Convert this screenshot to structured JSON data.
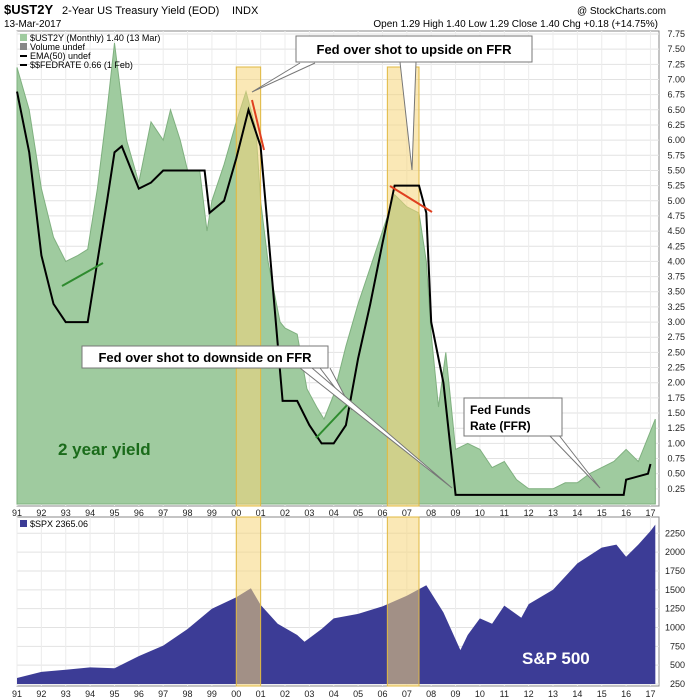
{
  "header": {
    "symbol": "$UST2Y",
    "description": "2-Year US Treasury Yield (EOD)",
    "exchange": "INDX",
    "date": "13-Mar-2017",
    "quote": "Open 1.29  High 1.40  Low 1.29  Close 1.40  Chg +0.18 (+14.75%)",
    "brand": "@ StockCharts.com"
  },
  "legend": {
    "main": "$UST2Y (Monthly) 1.40 (13 Mar)",
    "volume": "Volume undef",
    "ema": "EMA(50) undef",
    "fedrate": "$$FEDRATE 0.66 (1 Feb)",
    "spx": "$SPX 2365.06"
  },
  "annotations": {
    "upside": "Fed over shot to upside on FFR",
    "downside": "Fed over shot to downside on FFR",
    "ffr_line1": "Fed Funds",
    "ffr_line2": "Rate (FFR)",
    "yield_label": "2 year yield",
    "spx_label": "S&P 500"
  },
  "colors": {
    "yield_fill": "#9fcb9f",
    "yield_stroke": "#7fb07f",
    "ffr_line": "#000000",
    "spx_fill": "#3c3c96",
    "highlight": "#f5d67a",
    "trend_green": "#2e8b2e",
    "trend_red": "#e04020",
    "yield_label": "#1a6b1a"
  },
  "chart_data": [
    {
      "type": "area",
      "title": "$UST2Y 2-Year US Treasury Yield (Monthly)",
      "x_ticks": [
        "91",
        "92",
        "93",
        "94",
        "95",
        "96",
        "97",
        "98",
        "99",
        "00",
        "01",
        "02",
        "03",
        "04",
        "05",
        "06",
        "07",
        "08",
        "09",
        "10",
        "11",
        "12",
        "13",
        "14",
        "15",
        "16",
        "17"
      ],
      "ylim": [
        0,
        7.75
      ],
      "y_ticks": [
        0.25,
        0.5,
        0.75,
        1.0,
        1.25,
        1.5,
        1.75,
        2.0,
        2.25,
        2.5,
        2.75,
        3.0,
        3.25,
        3.5,
        3.75,
        4.0,
        4.25,
        4.5,
        4.75,
        5.0,
        5.25,
        5.5,
        5.75,
        6.0,
        6.25,
        6.5,
        6.75,
        7.0,
        7.25,
        7.5,
        7.75
      ],
      "series": [
        {
          "name": "$UST2Y yield",
          "points": [
            [
              1991.0,
              7.2
            ],
            [
              1991.5,
              6.5
            ],
            [
              1992.0,
              5.2
            ],
            [
              1992.5,
              4.4
            ],
            [
              1993.0,
              4.0
            ],
            [
              1993.5,
              4.1
            ],
            [
              1993.9,
              4.2
            ],
            [
              1994.3,
              5.2
            ],
            [
              1994.7,
              6.5
            ],
            [
              1995.0,
              7.6
            ],
            [
              1995.5,
              6.0
            ],
            [
              1996.0,
              5.3
            ],
            [
              1996.5,
              6.3
            ],
            [
              1997.0,
              6.0
            ],
            [
              1997.3,
              6.5
            ],
            [
              1997.7,
              6.0
            ],
            [
              1998.0,
              5.5
            ],
            [
              1998.5,
              5.5
            ],
            [
              1998.8,
              4.5
            ],
            [
              1999.0,
              5.0
            ],
            [
              1999.5,
              5.6
            ],
            [
              2000.0,
              6.3
            ],
            [
              2000.4,
              6.8
            ],
            [
              2000.8,
              6.2
            ],
            [
              2001.0,
              5.0
            ],
            [
              2001.3,
              4.0
            ],
            [
              2001.8,
              3.0
            ],
            [
              2002.0,
              2.9
            ],
            [
              2002.5,
              2.8
            ],
            [
              2002.9,
              1.9
            ],
            [
              2003.3,
              1.6
            ],
            [
              2003.6,
              1.4
            ],
            [
              2004.0,
              1.8
            ],
            [
              2004.5,
              2.6
            ],
            [
              2005.0,
              3.3
            ],
            [
              2005.5,
              3.9
            ],
            [
              2006.0,
              4.5
            ],
            [
              2006.5,
              5.1
            ],
            [
              2007.0,
              4.9
            ],
            [
              2007.5,
              4.8
            ],
            [
              2007.8,
              4.0
            ],
            [
              2008.0,
              2.8
            ],
            [
              2008.3,
              1.6
            ],
            [
              2008.6,
              2.5
            ],
            [
              2009.0,
              0.9
            ],
            [
              2009.5,
              1.0
            ],
            [
              2010.0,
              0.9
            ],
            [
              2010.5,
              0.6
            ],
            [
              2011.0,
              0.7
            ],
            [
              2011.5,
              0.4
            ],
            [
              2012.0,
              0.25
            ],
            [
              2012.5,
              0.25
            ],
            [
              2013.0,
              0.25
            ],
            [
              2013.5,
              0.35
            ],
            [
              2014.0,
              0.35
            ],
            [
              2014.5,
              0.5
            ],
            [
              2015.0,
              0.6
            ],
            [
              2015.5,
              0.7
            ],
            [
              2016.0,
              0.9
            ],
            [
              2016.5,
              0.7
            ],
            [
              2017.0,
              1.2
            ],
            [
              2017.2,
              1.4
            ]
          ]
        },
        {
          "name": "$$FEDRATE",
          "points": [
            [
              1991.0,
              6.8
            ],
            [
              1991.5,
              5.8
            ],
            [
              1992.0,
              4.1
            ],
            [
              1992.5,
              3.3
            ],
            [
              1993.0,
              3.0
            ],
            [
              1993.9,
              3.0
            ],
            [
              1994.3,
              4.0
            ],
            [
              1994.7,
              5.0
            ],
            [
              1995.0,
              5.8
            ],
            [
              1995.3,
              5.9
            ],
            [
              1995.7,
              5.5
            ],
            [
              1996.0,
              5.2
            ],
            [
              1996.5,
              5.3
            ],
            [
              1997.0,
              5.5
            ],
            [
              1998.0,
              5.5
            ],
            [
              1998.7,
              5.5
            ],
            [
              1998.9,
              4.8
            ],
            [
              1999.5,
              5.0
            ],
            [
              2000.0,
              5.7
            ],
            [
              2000.5,
              6.5
            ],
            [
              2001.0,
              5.9
            ],
            [
              2001.3,
              4.5
            ],
            [
              2001.9,
              1.7
            ],
            [
              2002.5,
              1.7
            ],
            [
              2003.0,
              1.3
            ],
            [
              2003.5,
              1.0
            ],
            [
              2004.0,
              1.0
            ],
            [
              2004.5,
              1.3
            ],
            [
              2005.0,
              2.4
            ],
            [
              2005.5,
              3.3
            ],
            [
              2006.0,
              4.3
            ],
            [
              2006.5,
              5.25
            ],
            [
              2007.5,
              5.25
            ],
            [
              2007.8,
              4.8
            ],
            [
              2008.0,
              3.0
            ],
            [
              2008.5,
              2.0
            ],
            [
              2009.0,
              0.15
            ],
            [
              2015.9,
              0.15
            ],
            [
              2016.0,
              0.4
            ],
            [
              2016.9,
              0.5
            ],
            [
              2017.0,
              0.66
            ]
          ]
        }
      ],
      "highlights": [
        [
          2000.0,
          2001.0
        ],
        [
          2006.2,
          2007.5
        ]
      ]
    },
    {
      "type": "area",
      "title": "$SPX 2365.06",
      "x_ticks": [
        "91",
        "92",
        "93",
        "94",
        "95",
        "96",
        "97",
        "98",
        "99",
        "00",
        "01",
        "02",
        "03",
        "04",
        "05",
        "06",
        "07",
        "08",
        "09",
        "10",
        "11",
        "12",
        "13",
        "14",
        "15",
        "16",
        "17"
      ],
      "ylim": [
        250,
        2400
      ],
      "y_ticks": [
        250,
        500,
        750,
        1000,
        1250,
        1500,
        1750,
        2000,
        2250
      ],
      "series": [
        {
          "name": "$SPX",
          "points": [
            [
              1991.0,
              330
            ],
            [
              1992.0,
              410
            ],
            [
              1993.0,
              440
            ],
            [
              1994.0,
              470
            ],
            [
              1995.0,
              460
            ],
            [
              1996.0,
              620
            ],
            [
              1997.0,
              760
            ],
            [
              1998.0,
              980
            ],
            [
              1999.0,
              1250
            ],
            [
              2000.0,
              1400
            ],
            [
              2000.6,
              1520
            ],
            [
              2001.0,
              1300
            ],
            [
              2001.7,
              1050
            ],
            [
              2002.5,
              900
            ],
            [
              2002.8,
              810
            ],
            [
              2003.5,
              980
            ],
            [
              2004.0,
              1120
            ],
            [
              2005.0,
              1180
            ],
            [
              2006.0,
              1280
            ],
            [
              2007.0,
              1420
            ],
            [
              2007.8,
              1560
            ],
            [
              2008.5,
              1200
            ],
            [
              2009.2,
              700
            ],
            [
              2009.5,
              900
            ],
            [
              2010.0,
              1120
            ],
            [
              2010.5,
              1050
            ],
            [
              2011.0,
              1290
            ],
            [
              2011.7,
              1130
            ],
            [
              2012.0,
              1310
            ],
            [
              2013.0,
              1500
            ],
            [
              2014.0,
              1850
            ],
            [
              2015.0,
              2060
            ],
            [
              2015.6,
              2100
            ],
            [
              2016.0,
              1940
            ],
            [
              2016.5,
              2100
            ],
            [
              2017.0,
              2280
            ],
            [
              2017.2,
              2365
            ]
          ]
        }
      ]
    }
  ]
}
